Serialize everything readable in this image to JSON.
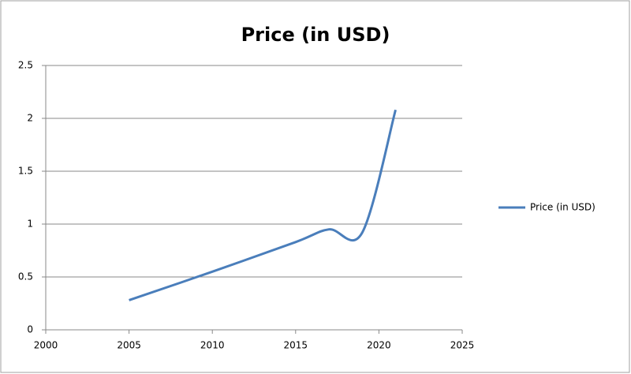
{
  "chart_data": {
    "type": "line",
    "title": "Price (in USD)",
    "x": [
      2005,
      2010,
      2015,
      2017,
      2019,
      2021
    ],
    "series": [
      {
        "name": "Price (in USD)",
        "color": "#4a7ebb",
        "values": [
          0.28,
          0.55,
          0.83,
          0.95,
          0.92,
          2.08
        ]
      }
    ],
    "xlim": [
      2000,
      2025
    ],
    "xticks": [
      2000,
      2005,
      2010,
      2015,
      2020,
      2025
    ],
    "ylim": [
      0,
      2.5
    ],
    "yticks": [
      0,
      0.5,
      1,
      1.5,
      2,
      2.5
    ],
    "grid": true,
    "smooth": true,
    "legend": "right"
  }
}
